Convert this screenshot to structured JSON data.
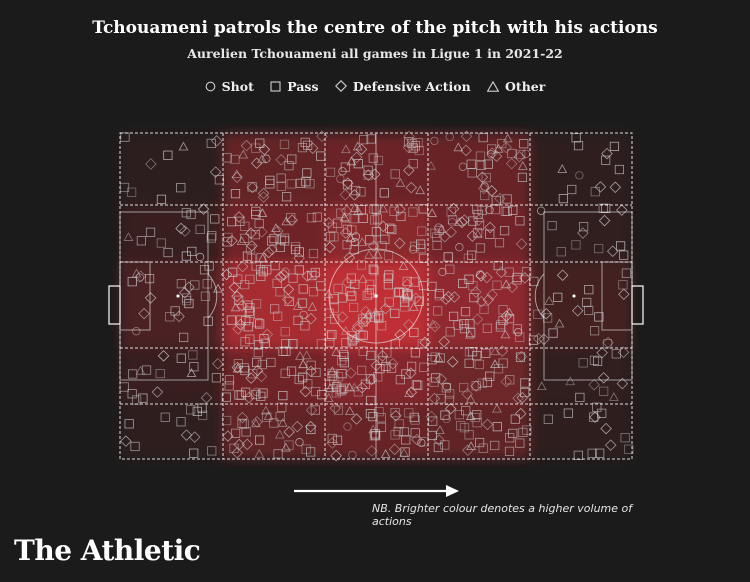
{
  "header": {
    "title": "Tchouameni patrols the centre of the pitch with his actions",
    "subtitle": "Aurelien Tchouameni all games in Ligue 1 in 2021-22"
  },
  "legend": [
    {
      "label": "Shot",
      "marker": "circle-icon"
    },
    {
      "label": "Pass",
      "marker": "square-icon"
    },
    {
      "label": "Defensive Action",
      "marker": "diamond-icon"
    },
    {
      "label": "Other",
      "marker": "triangle-icon"
    }
  ],
  "footer": {
    "note": "NB. Brighter colour denotes a higher volume of actions",
    "brand": "The Athletic"
  },
  "colors": {
    "background": "#1b1b1b",
    "heat": "#e8333b",
    "markers": "#c9c9c9",
    "lines": "#ffffff"
  },
  "chart_data": {
    "type": "heatmap",
    "direction_of_play": "left-to-right",
    "grid": {
      "columns": 5,
      "rows": 5
    },
    "intensity": [
      [
        0.03,
        0.38,
        0.42,
        0.4,
        0.04
      ],
      [
        0.1,
        0.45,
        0.62,
        0.46,
        0.06
      ],
      [
        0.22,
        0.8,
        0.95,
        0.65,
        0.18
      ],
      [
        0.1,
        0.45,
        0.58,
        0.44,
        0.06
      ],
      [
        0.04,
        0.36,
        0.4,
        0.36,
        0.04
      ]
    ],
    "action_types": [
      "Shot",
      "Pass",
      "Defensive Action",
      "Other"
    ]
  }
}
